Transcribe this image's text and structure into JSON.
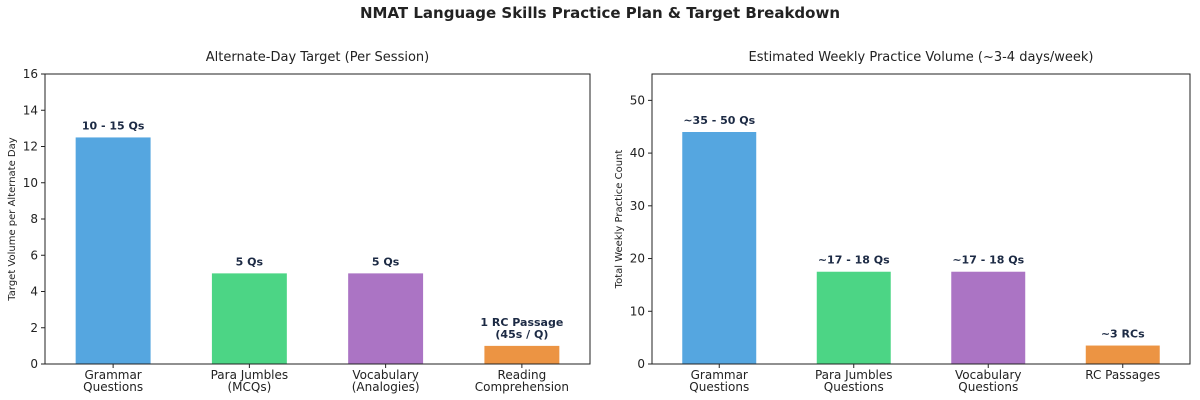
{
  "title": "NMAT Language Skills Practice Plan & Target Breakdown",
  "chart_data": [
    {
      "type": "bar",
      "title": "Alternate-Day Target (Per Session)",
      "y_label": "Target Volume per Alternate Day",
      "categories": [
        "Grammar\nQuestions",
        "Para Jumbles\n(MCQs)",
        "Vocabulary\n(Analogies)",
        "Reading\nComprehension"
      ],
      "values": [
        12.5,
        5,
        5,
        1
      ],
      "value_labels": [
        "10 - 15 Qs",
        "5 Qs",
        "5 Qs",
        "1 RC Passage\n(45s / Q)"
      ],
      "colors": [
        "#55a6e0",
        "#4cd585",
        "#ab74c4",
        "#ec9443"
      ],
      "ylim": [
        0,
        16
      ],
      "yticks": [
        0,
        2,
        4,
        6,
        8,
        10,
        12,
        14,
        16
      ]
    },
    {
      "type": "bar",
      "title": "Estimated Weekly Practice Volume (~3-4 days/week)",
      "y_label": "Total Weekly Practice Count",
      "categories": [
        "Grammar\nQuestions",
        "Para Jumbles\nQuestions",
        "Vocabulary\nQuestions",
        "RC Passages"
      ],
      "values": [
        44,
        17.5,
        17.5,
        3.5
      ],
      "value_labels": [
        "~35 - 50 Qs",
        "~17 - 18 Qs",
        "~17 - 18 Qs",
        "~3 RCs"
      ],
      "colors": [
        "#55a6e0",
        "#4cd585",
        "#ab74c4",
        "#ec9443"
      ],
      "ylim": [
        0,
        55
      ],
      "yticks": [
        0,
        10,
        20,
        30,
        40,
        50
      ]
    }
  ]
}
